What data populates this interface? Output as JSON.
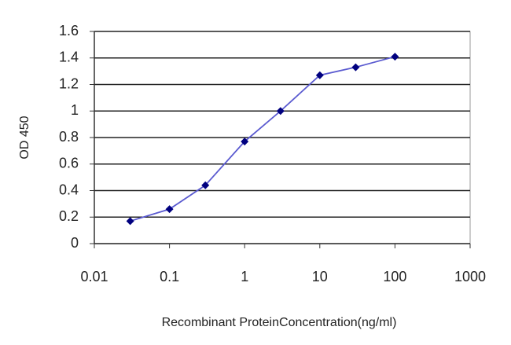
{
  "chart_data": {
    "type": "line",
    "x_label": "Recombinant ProteinConcentration(ng/ml)",
    "y_label": "OD 450",
    "x": [
      0.03,
      0.1,
      0.3,
      1,
      3,
      10,
      30,
      100
    ],
    "series": [
      {
        "color": "#00007f",
        "values": [
          0.17,
          0.26,
          0.44,
          0.77,
          1.0,
          1.27,
          1.33,
          1.41
        ]
      }
    ],
    "xlim": [
      0.01,
      1000
    ],
    "xticks": [
      0.01,
      0.1,
      1,
      10,
      100,
      1000
    ],
    "x_scale": "log",
    "ylim": [
      0,
      1.6
    ],
    "yticks": [
      0,
      0.2,
      0.4,
      0.6,
      0.8,
      1,
      1.2,
      1.4,
      1.6
    ],
    "grid": true
  }
}
